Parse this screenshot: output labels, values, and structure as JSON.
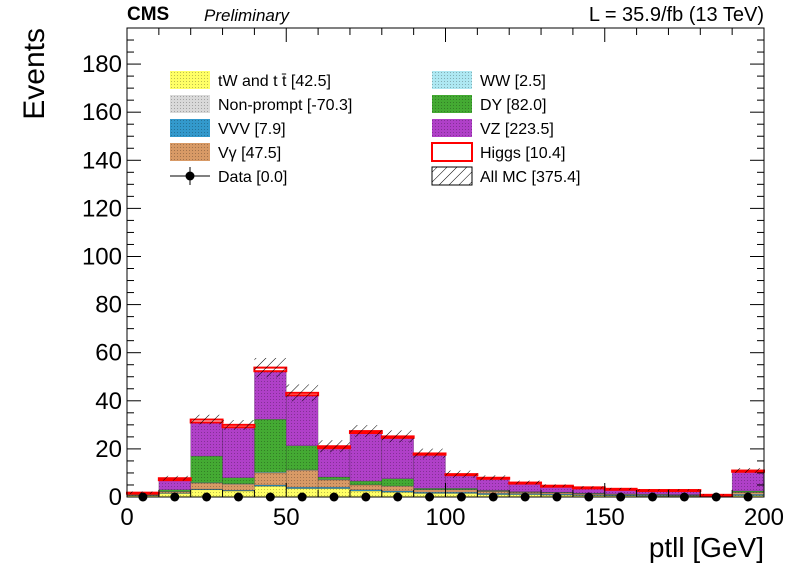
{
  "header": {
    "experiment": "CMS",
    "status": "Preliminary",
    "lumi": "L = 35.9/fb (13 TeV)"
  },
  "colors": {
    "tW": "#ffff66",
    "nonprompt": "#d9d9d9",
    "VVV": "#3399cc",
    "Vgamma": "#d89a66",
    "WW": "#aee8f2",
    "DY": "#44aa33",
    "VZ": "#b040c8",
    "Higgs": "#ff0000",
    "data": "#000000"
  },
  "chart_data": {
    "type": "bar",
    "xlabel": "ptll [GeV]",
    "ylabel": "Events",
    "xlim": [
      0,
      200
    ],
    "ylim": [
      0,
      195
    ],
    "x_ticks": [
      0,
      50,
      100,
      150,
      200
    ],
    "y_ticks": [
      0,
      20,
      40,
      60,
      80,
      100,
      120,
      140,
      160,
      180
    ],
    "bin_edges": [
      0,
      10,
      20,
      30,
      40,
      50,
      60,
      70,
      80,
      90,
      100,
      110,
      120,
      130,
      140,
      150,
      160,
      170,
      180,
      190,
      200
    ],
    "series": [
      {
        "name": "tW and t t̄ [42.5]",
        "key": "tW",
        "values": [
          0.5,
          1.5,
          3.0,
          2.5,
          4.5,
          3.5,
          3.5,
          2.5,
          2.0,
          1.5,
          1.5,
          1.0,
          1.0,
          0.8,
          0.6,
          0.5,
          0.4,
          0.4,
          0.2,
          0.6
        ]
      },
      {
        "name": "Non-prompt [-70.3]",
        "key": "nonprompt",
        "values": [
          0,
          0,
          0,
          0,
          0,
          0,
          0,
          0,
          0,
          0,
          0,
          0,
          0,
          0,
          0,
          0,
          0,
          0,
          0,
          0
        ]
      },
      {
        "name": "VVV [7.9]",
        "key": "VVV",
        "values": [
          0.1,
          0.2,
          0.3,
          0.3,
          0.5,
          0.6,
          0.6,
          0.5,
          0.5,
          0.5,
          0.5,
          0.5,
          0.4,
          0.4,
          0.3,
          0.3,
          0.3,
          0.2,
          0.1,
          0.5
        ]
      },
      {
        "name": "Vγ [47.5]",
        "key": "Vgamma",
        "values": [
          0.2,
          0.5,
          2.5,
          2.5,
          5.0,
          7.0,
          3.0,
          2.0,
          2.0,
          1.0,
          1.0,
          0.8,
          0.5,
          0.5,
          0.4,
          0.3,
          0.3,
          0.2,
          0.1,
          0.8
        ]
      },
      {
        "name": "WW [2.5]",
        "key": "WW",
        "values": [
          0.1,
          0.1,
          0.2,
          0.2,
          0.3,
          0.2,
          0.2,
          0.1,
          0.1,
          0.1,
          0.1,
          0.1,
          0.1,
          0.1,
          0.1,
          0.1,
          0.1,
          0.1,
          0.0,
          0.1
        ]
      },
      {
        "name": "DY [82.0]",
        "key": "DY",
        "values": [
          0.4,
          0.7,
          11.0,
          2.5,
          22.0,
          10.0,
          1.0,
          1.5,
          3.0,
          0.5,
          0.5,
          0.3,
          0.2,
          0.2,
          0.2,
          0.1,
          0.1,
          0.1,
          0.0,
          0.5
        ]
      },
      {
        "name": "VZ [223.5]",
        "key": "VZ",
        "values": [
          0.2,
          4.0,
          14.0,
          21.0,
          20.0,
          21.0,
          12.0,
          20.0,
          17.0,
          14.0,
          5.5,
          5.0,
          3.5,
          2.5,
          2.2,
          2.0,
          1.6,
          1.8,
          0.4,
          8.0
        ]
      },
      {
        "name": "Higgs [10.4]",
        "key": "Higgs",
        "values": [
          0.3,
          0.8,
          1.2,
          1.0,
          1.5,
          1.0,
          0.8,
          0.8,
          0.6,
          0.5,
          0.4,
          0.3,
          0.3,
          0.2,
          0.2,
          0.1,
          0.1,
          0.1,
          0.1,
          0.5
        ]
      }
    ],
    "all_mc": {
      "name": "All MC [375.4]",
      "uncertainty": [
        0.5,
        1.0,
        2.0,
        2.0,
        4.0,
        3.5,
        2.5,
        2.5,
        2.5,
        2.0,
        1.5,
        1.0,
        0.8,
        0.6,
        0.5,
        0.4,
        0.3,
        0.3,
        0.2,
        1.0
      ]
    },
    "data": {
      "name": "Data [0.0]",
      "values": [
        0,
        0,
        0,
        0,
        0,
        0,
        0,
        0,
        0,
        0,
        0,
        0,
        0,
        0,
        0,
        0,
        0,
        0,
        0,
        0
      ]
    },
    "legend_order": [
      [
        "tW",
        "WW"
      ],
      [
        "nonprompt",
        "DY"
      ],
      [
        "VVV",
        "VZ"
      ],
      [
        "Vgamma",
        "Higgs"
      ],
      [
        "data",
        "allmc"
      ]
    ],
    "legend_placement": "top"
  }
}
